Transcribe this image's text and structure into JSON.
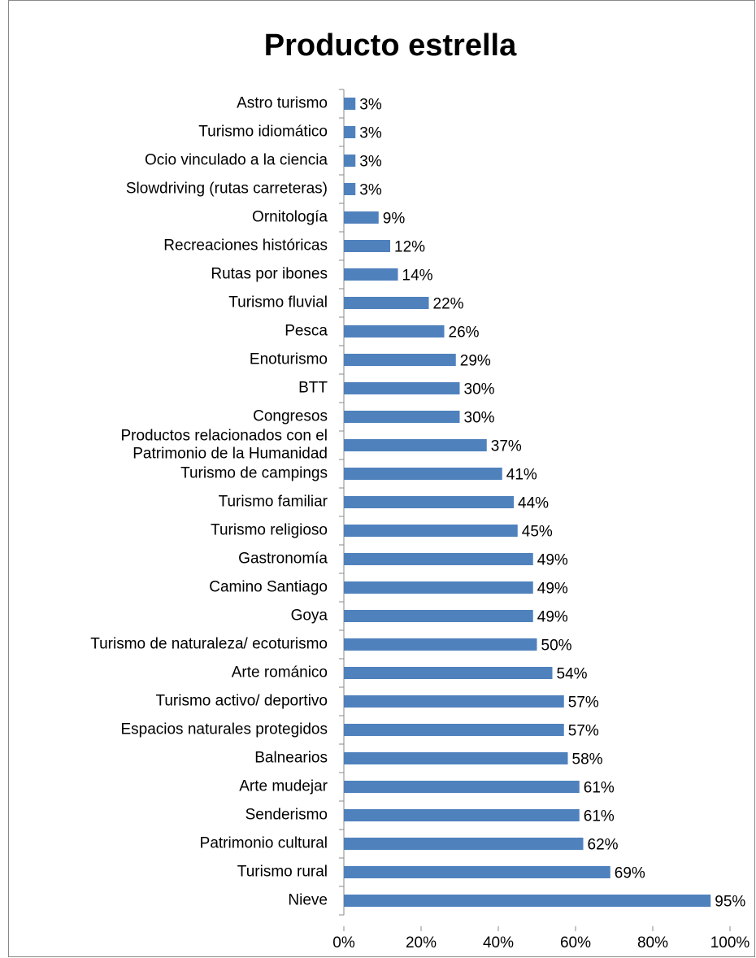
{
  "chart_data": {
    "type": "barh",
    "title": "Producto estrella",
    "categories": [
      "Astro turismo",
      "Turismo idiomático",
      "Ocio vinculado a la ciencia",
      "Slowdriving (rutas carreteras)",
      "Ornitología",
      "Recreaciones históricas",
      "Rutas por ibones",
      "Turismo fluvial",
      "Pesca",
      "Enoturismo",
      "BTT",
      "Congresos",
      "Productos relacionados con el\nPatrimonio de la Humanidad",
      "Turismo de campings",
      "Turismo familiar",
      "Turismo religioso",
      "Gastronomía",
      "Camino Santiago",
      "Goya",
      "Turismo de naturaleza/ ecoturismo",
      "Arte románico",
      "Turismo activo/ deportivo",
      "Espacios naturales protegidos",
      "Balnearios",
      "Arte mudejar",
      "Senderismo",
      "Patrimonio cultural",
      "Turismo rural",
      "Nieve"
    ],
    "values": [
      3,
      3,
      3,
      3,
      9,
      12,
      14,
      22,
      26,
      29,
      30,
      30,
      37,
      41,
      44,
      45,
      49,
      49,
      49,
      50,
      54,
      57,
      57,
      58,
      61,
      61,
      62,
      69,
      95
    ],
    "value_labels": [
      "3%",
      "3%",
      "3%",
      "3%",
      "9%",
      "12%",
      "14%",
      "22%",
      "26%",
      "29%",
      "30%",
      "30%",
      "37%",
      "41%",
      "44%",
      "45%",
      "49%",
      "49%",
      "49%",
      "50%",
      "54%",
      "57%",
      "57%",
      "58%",
      "61%",
      "61%",
      "62%",
      "69%",
      "95%"
    ],
    "color": "#4f81bd",
    "xlim": [
      0,
      100
    ],
    "xticks": [
      {
        "value": 0,
        "label": "0%"
      },
      {
        "value": 20,
        "label": "20%"
      },
      {
        "value": 40,
        "label": "40%"
      },
      {
        "value": 60,
        "label": "60%"
      },
      {
        "value": 80,
        "label": "80%"
      },
      {
        "value": 100,
        "label": "100%"
      }
    ]
  }
}
